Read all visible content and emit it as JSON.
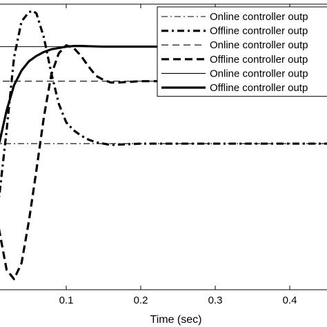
{
  "chart_data": {
    "type": "line",
    "xlabel": "Time (sec)",
    "ylabel": "",
    "title": "",
    "xlim": [
      0,
      0.5
    ],
    "x_ticks": [
      0.1,
      0.2,
      0.3,
      0.4
    ],
    "x_tick_labels": [
      "0.1",
      "0.2",
      "0.3",
      "0.4"
    ],
    "ylim": [
      -1.1,
      1.05
    ],
    "grid": false,
    "legend_position": "top-right",
    "series": [
      {
        "name": "Online controller outp",
        "style": "dash-dot",
        "weight": "thin",
        "x": [
          0,
          0.5
        ],
        "y": [
          0,
          0
        ]
      },
      {
        "name": "Offline controller outp",
        "style": "dash-dot",
        "weight": "thick",
        "x": [
          0,
          0.01,
          0.02,
          0.03,
          0.04,
          0.05,
          0.055,
          0.06,
          0.07,
          0.08,
          0.09,
          0.1,
          0.11,
          0.12,
          0.13,
          0.14,
          0.15,
          0.16,
          0.2,
          0.3,
          0.4,
          0.5
        ],
        "y": [
          -0.2,
          -0.4,
          0.1,
          0.65,
          0.92,
          0.99,
          1.0,
          0.98,
          0.8,
          0.53,
          0.3,
          0.16,
          0.1,
          0.06,
          0.03,
          0.01,
          0.0,
          -0.01,
          0.0,
          0.0,
          0.0,
          0.0
        ]
      },
      {
        "name": "Online controller outp",
        "style": "dashed",
        "weight": "thin",
        "x": [
          0,
          0.5
        ],
        "y": [
          0.47,
          0.47
        ]
      },
      {
        "name": "Offline controller outp",
        "style": "dashed",
        "weight": "thick",
        "x": [
          0,
          0.01,
          0.02,
          0.03,
          0.04,
          0.05,
          0.06,
          0.07,
          0.08,
          0.09,
          0.1,
          0.11,
          0.12,
          0.13,
          0.14,
          0.15,
          0.16,
          0.17,
          0.2,
          0.3,
          0.4,
          0.5
        ],
        "y": [
          -0.2,
          -0.65,
          -0.95,
          -1.02,
          -0.9,
          -0.58,
          -0.2,
          0.2,
          0.52,
          0.68,
          0.74,
          0.72,
          0.66,
          0.58,
          0.51,
          0.48,
          0.46,
          0.46,
          0.47,
          0.47,
          0.47,
          0.47
        ]
      },
      {
        "name": "Online controller outp",
        "style": "solid",
        "weight": "thin",
        "x": [
          0,
          0.5
        ],
        "y": [
          0.73,
          0.73
        ]
      },
      {
        "name": "Offline controller outp",
        "style": "solid",
        "weight": "thick",
        "x": [
          0,
          0.01,
          0.02,
          0.03,
          0.04,
          0.05,
          0.06,
          0.07,
          0.08,
          0.09,
          0.1,
          0.11,
          0.12,
          0.15,
          0.2,
          0.3,
          0.4,
          0.5
        ],
        "y": [
          -0.25,
          0.0,
          0.25,
          0.44,
          0.55,
          0.62,
          0.66,
          0.69,
          0.71,
          0.72,
          0.73,
          0.735,
          0.735,
          0.73,
          0.73,
          0.73,
          0.73,
          0.73
        ]
      }
    ]
  }
}
